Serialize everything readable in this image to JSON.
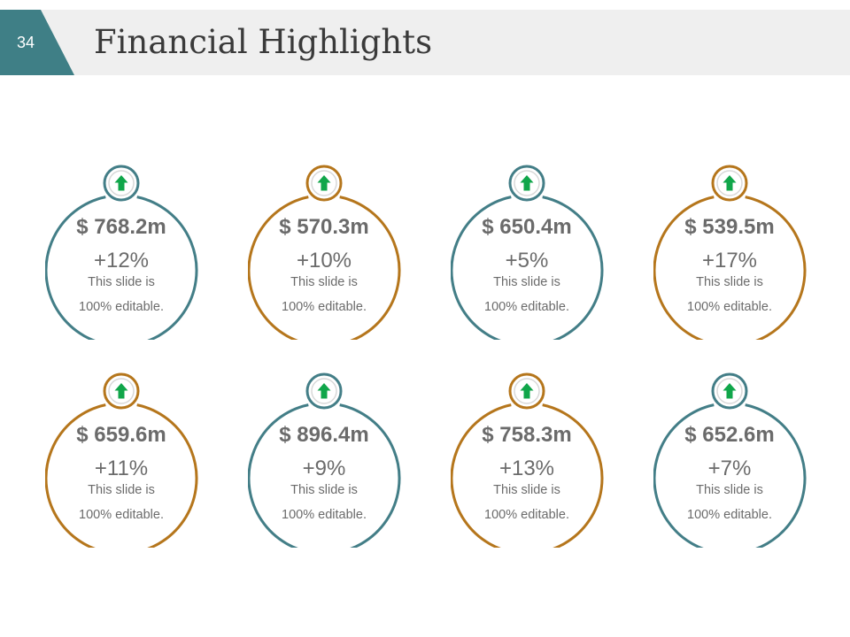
{
  "slide": {
    "number": "34",
    "title": "Financial Highlights"
  },
  "colors": {
    "teal": "#437e87",
    "orange": "#b5761c",
    "arrow_green": "#10a64a",
    "header_band": "#efefef",
    "number_tab": "#3f7f86",
    "text_gray": "#6b6b6b"
  },
  "cards": [
    {
      "amount": "$ 768.2m",
      "change": "+12%",
      "desc_line1": "This slide is",
      "desc_line2": "100% editable.",
      "color": "#437e87",
      "trend_icon": "up-arrow-icon"
    },
    {
      "amount": "$ 570.3m",
      "change": "+10%",
      "desc_line1": "This slide is",
      "desc_line2": "100% editable.",
      "color": "#b5761c",
      "trend_icon": "up-arrow-icon"
    },
    {
      "amount": "$ 650.4m",
      "change": "+5%",
      "desc_line1": "This slide is",
      "desc_line2": "100% editable.",
      "color": "#437e87",
      "trend_icon": "up-arrow-icon"
    },
    {
      "amount": "$ 539.5m",
      "change": "+17%",
      "desc_line1": "This slide is",
      "desc_line2": "100% editable.",
      "color": "#b5761c",
      "trend_icon": "up-arrow-icon"
    },
    {
      "amount": "$ 659.6m",
      "change": "+11%",
      "desc_line1": "This slide is",
      "desc_line2": "100% editable.",
      "color": "#b5761c",
      "trend_icon": "up-arrow-icon"
    },
    {
      "amount": "$ 896.4m",
      "change": "+9%",
      "desc_line1": "This slide is",
      "desc_line2": "100% editable.",
      "color": "#437e87",
      "trend_icon": "up-arrow-icon"
    },
    {
      "amount": "$ 758.3m",
      "change": "+13%",
      "desc_line1": "This slide is",
      "desc_line2": "100% editable.",
      "color": "#b5761c",
      "trend_icon": "up-arrow-icon"
    },
    {
      "amount": "$ 652.6m",
      "change": "+7%",
      "desc_line1": "This slide is",
      "desc_line2": "100% editable.",
      "color": "#437e87",
      "trend_icon": "up-arrow-icon"
    }
  ]
}
